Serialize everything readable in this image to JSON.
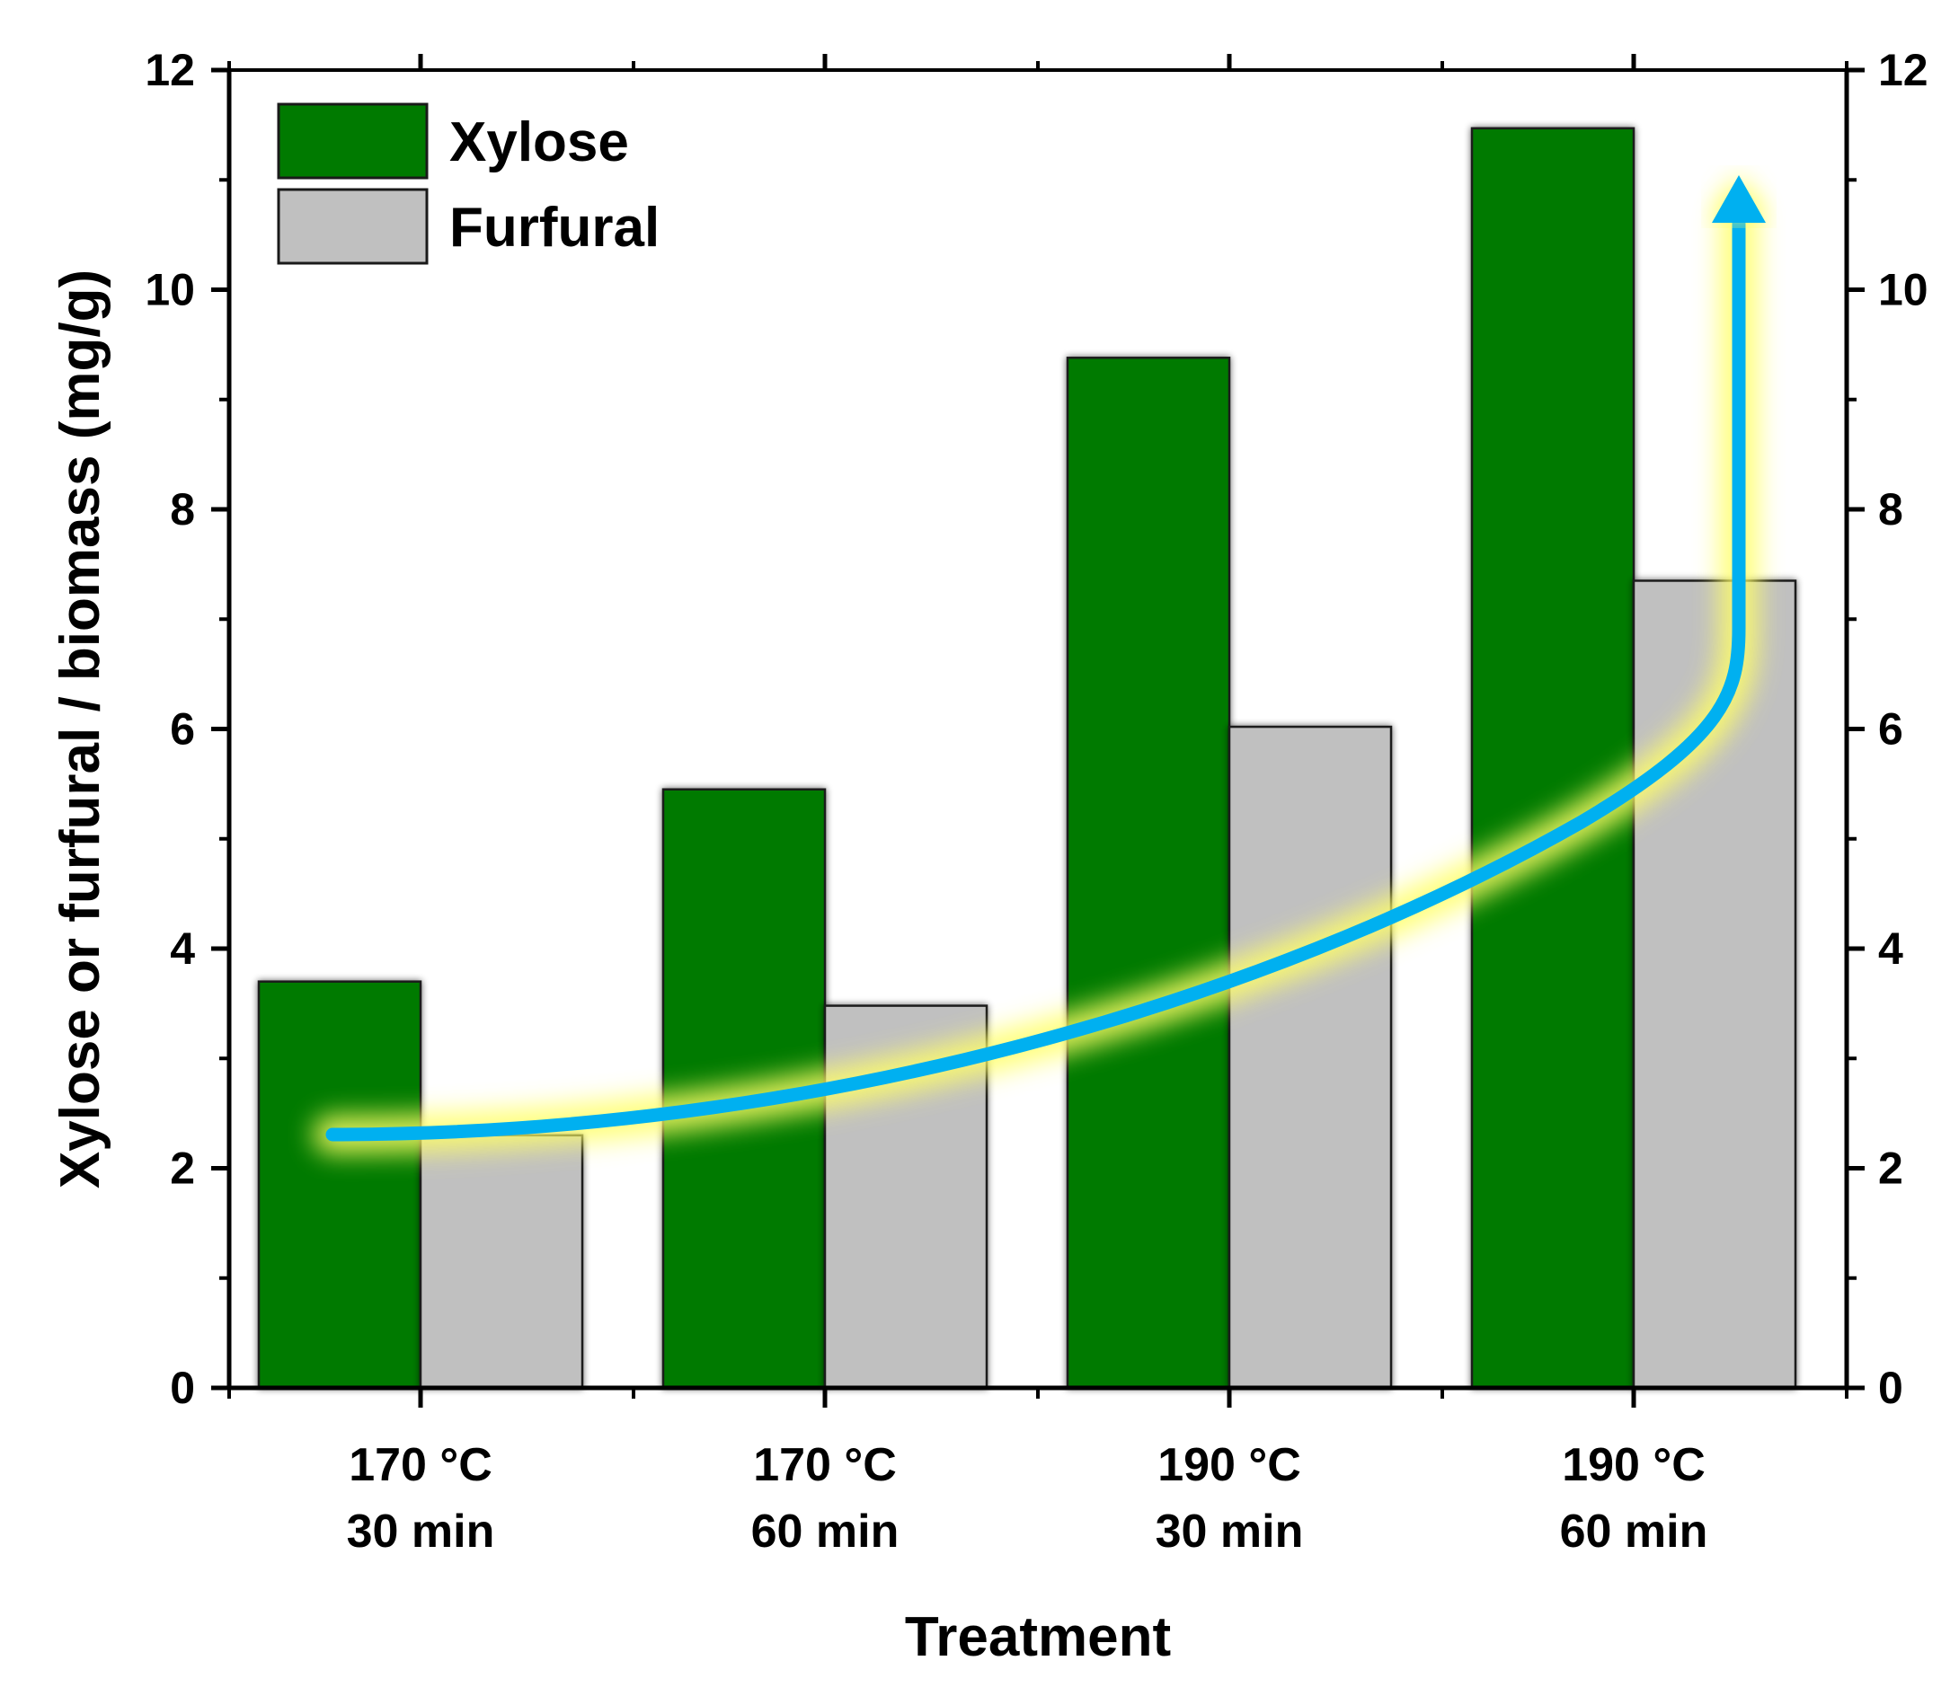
{
  "chart_data": {
    "type": "bar",
    "title": "",
    "xlabel": "Treatment",
    "ylabel": "Xylose or furfural / biomass (mg/g)",
    "ylim": [
      0,
      12
    ],
    "yticks": [
      0,
      2,
      4,
      6,
      8,
      10,
      12
    ],
    "right_axis_ticks": [
      0,
      2,
      4,
      6,
      8,
      10,
      12
    ],
    "categories": [
      [
        "170 °C",
        "30 min"
      ],
      [
        "170 °C",
        "60 min"
      ],
      [
        "190 °C",
        "30 min"
      ],
      [
        "190 °C",
        "60 min"
      ]
    ],
    "series": [
      {
        "name": "Xylose",
        "color": "#007a00",
        "values": [
          3.7,
          5.45,
          9.38,
          11.47
        ]
      },
      {
        "name": "Furfural",
        "color": "#c0c0c0",
        "values": [
          2.3,
          3.48,
          6.02,
          7.35
        ]
      }
    ],
    "legend_position": "top-left",
    "annotation": {
      "type": "trend-arrow",
      "description": "increasing trend",
      "color": "#00b0f0",
      "glow_color": "#ffff66"
    }
  }
}
